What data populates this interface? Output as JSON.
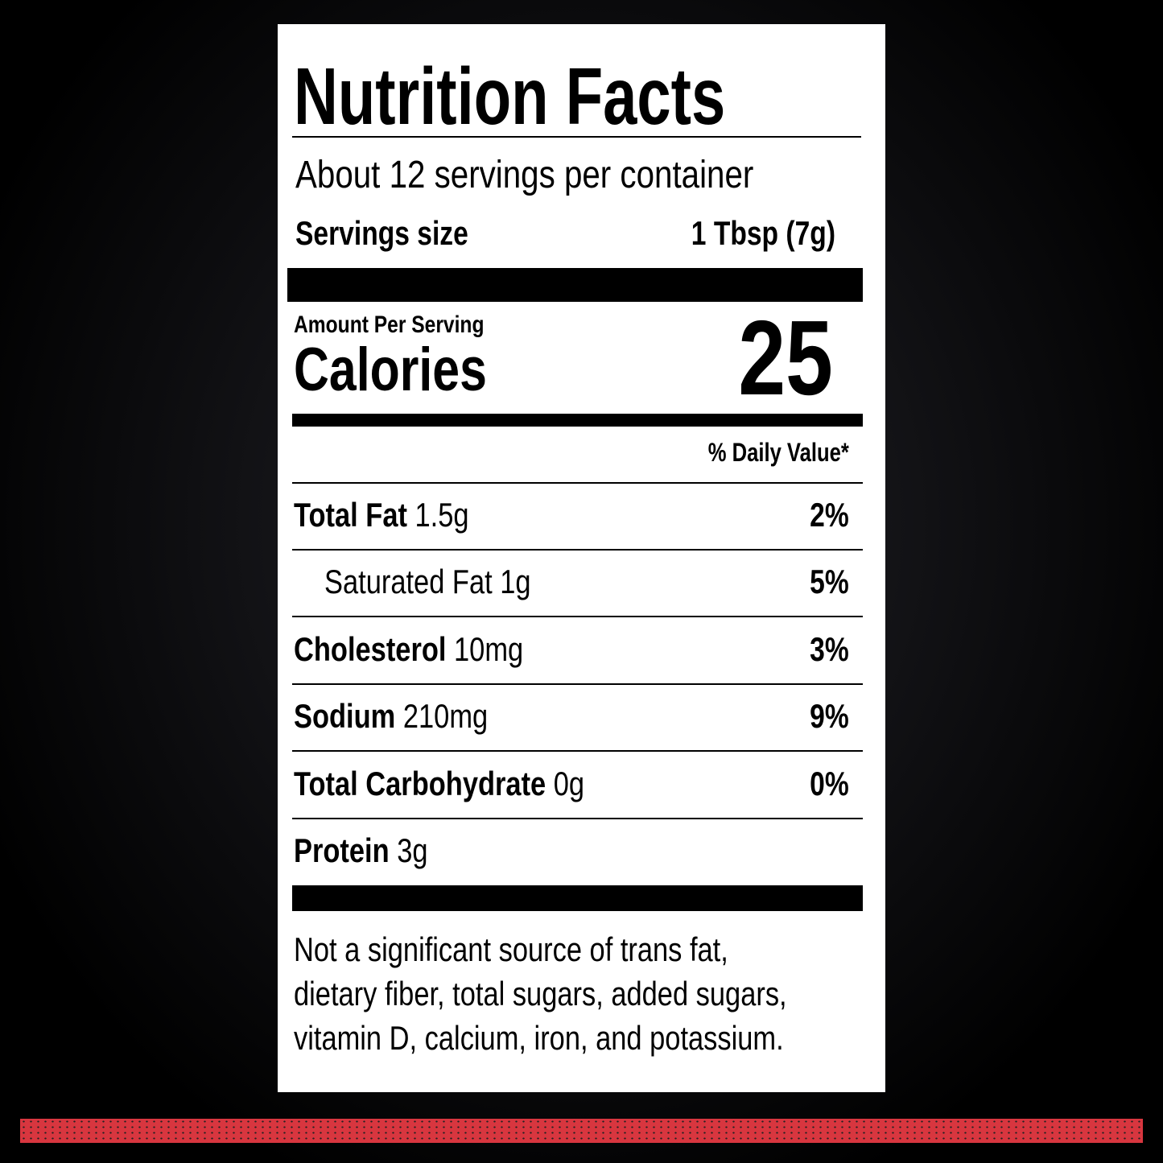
{
  "title": "Nutrition Facts",
  "servings_per_container": "About 12 servings per container",
  "serving_size": {
    "label": "Servings size",
    "value": "1 Tbsp (7g)"
  },
  "calories": {
    "header": "Amount Per Serving",
    "label": "Calories",
    "value": 25
  },
  "daily_value_header": "% Daily Value*",
  "nutrients": [
    {
      "name": "Total Fat",
      "amount": "1.5g",
      "dv": "2%"
    },
    {
      "name": "Saturated Fat",
      "amount": "1g",
      "dv": "5%",
      "indent": true
    },
    {
      "name": "Cholesterol",
      "amount": "10mg",
      "dv": "3%"
    },
    {
      "name": "Sodium",
      "amount": "210mg",
      "dv": "9%"
    },
    {
      "name": "Total Carbohydrate",
      "amount": "0g",
      "dv": "0%"
    },
    {
      "name": "Protein",
      "amount": "3g"
    }
  ],
  "footnote": [
    "Not a significant source of trans fat,",
    "dietary fiber, total sugars, added sugars,",
    "vitamin D, calcium, iron, and potassium."
  ]
}
